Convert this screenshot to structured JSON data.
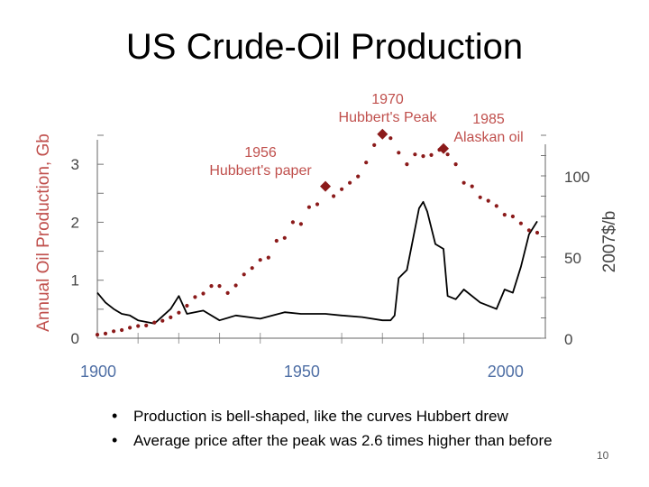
{
  "slide": {
    "title": "US Crude-Oil Production",
    "bullets": [
      "Production is bell-shaped, like the curves Hubbert drew",
      "Average price after the peak was 2.6 times higher than before"
    ],
    "page_number": "10"
  },
  "chart_data": {
    "type": "line",
    "title": "",
    "ylabel": "Annual Oil Production, Gb",
    "y2label": "2007$/b",
    "xlim": [
      1900,
      2010
    ],
    "ylim": [
      0,
      3.5
    ],
    "y2lim": [
      0,
      125
    ],
    "x_ticks": [
      1900,
      1950,
      2000
    ],
    "y_ticks": [
      0,
      1,
      2,
      3
    ],
    "y2_ticks": [
      0,
      50,
      100
    ],
    "colors": {
      "production": "#8b1a1a",
      "price": "#000000",
      "left_axis": "#c0504d",
      "x_axis_labels": "#4f6fa5"
    },
    "series": [
      {
        "name": "",
        "axis": "left",
        "style": "dotted-markers",
        "x": [
          1900,
          1902,
          1904,
          1906,
          1908,
          1910,
          1912,
          1914,
          1916,
          1918,
          1920,
          1922,
          1924,
          1926,
          1928,
          1930,
          1932,
          1934,
          1936,
          1938,
          1940,
          1942,
          1944,
          1946,
          1948,
          1950,
          1952,
          1954,
          1956,
          1958,
          1960,
          1962,
          1964,
          1966,
          1968,
          1970,
          1972,
          1974,
          1976,
          1978,
          1980,
          1982,
          1984,
          1985,
          1986,
          1988,
          1990,
          1992,
          1994,
          1996,
          1998,
          2000,
          2002,
          2004,
          2006,
          2008
        ],
        "values": [
          0.06,
          0.08,
          0.12,
          0.14,
          0.18,
          0.21,
          0.22,
          0.27,
          0.3,
          0.36,
          0.44,
          0.56,
          0.71,
          0.77,
          0.9,
          0.9,
          0.78,
          0.91,
          1.1,
          1.21,
          1.35,
          1.39,
          1.68,
          1.73,
          2.0,
          1.97,
          2.26,
          2.31,
          2.62,
          2.45,
          2.57,
          2.68,
          2.79,
          3.03,
          3.33,
          3.52,
          3.45,
          3.2,
          3.0,
          3.17,
          3.14,
          3.16,
          3.25,
          3.27,
          3.17,
          3.0,
          2.68,
          2.62,
          2.43,
          2.37,
          2.28,
          2.13,
          2.1,
          1.98,
          1.86,
          1.82
        ]
      },
      {
        "name": "",
        "axis": "right",
        "style": "line",
        "x": [
          1900,
          1902,
          1904,
          1906,
          1908,
          1910,
          1914,
          1918,
          1920,
          1922,
          1926,
          1930,
          1934,
          1940,
          1946,
          1950,
          1956,
          1960,
          1965,
          1970,
          1972,
          1973,
          1974,
          1976,
          1979,
          1980,
          1981,
          1983,
          1985,
          1986,
          1988,
          1990,
          1994,
          1998,
          2000,
          2002,
          2004,
          2006,
          2008
        ],
        "values": [
          28,
          22,
          18,
          15,
          14,
          11,
          9,
          18,
          26,
          15,
          17,
          11,
          14,
          12,
          16,
          15,
          15,
          14,
          13,
          11,
          11,
          14,
          37,
          42,
          80,
          84,
          78,
          58,
          55,
          26,
          24,
          30,
          22,
          18,
          30,
          28,
          44,
          64,
          72
        ]
      }
    ],
    "annotations": [
      {
        "text_lines": [
          "1956",
          "Hubbert's paper"
        ],
        "x": 1956,
        "y": 2.62
      },
      {
        "text_lines": [
          "1970",
          "Hubbert's Peak"
        ],
        "x": 1970,
        "y": 3.52
      },
      {
        "text_lines": [
          "1985",
          "Alaskan oil"
        ],
        "x": 1985,
        "y": 3.27
      }
    ]
  }
}
